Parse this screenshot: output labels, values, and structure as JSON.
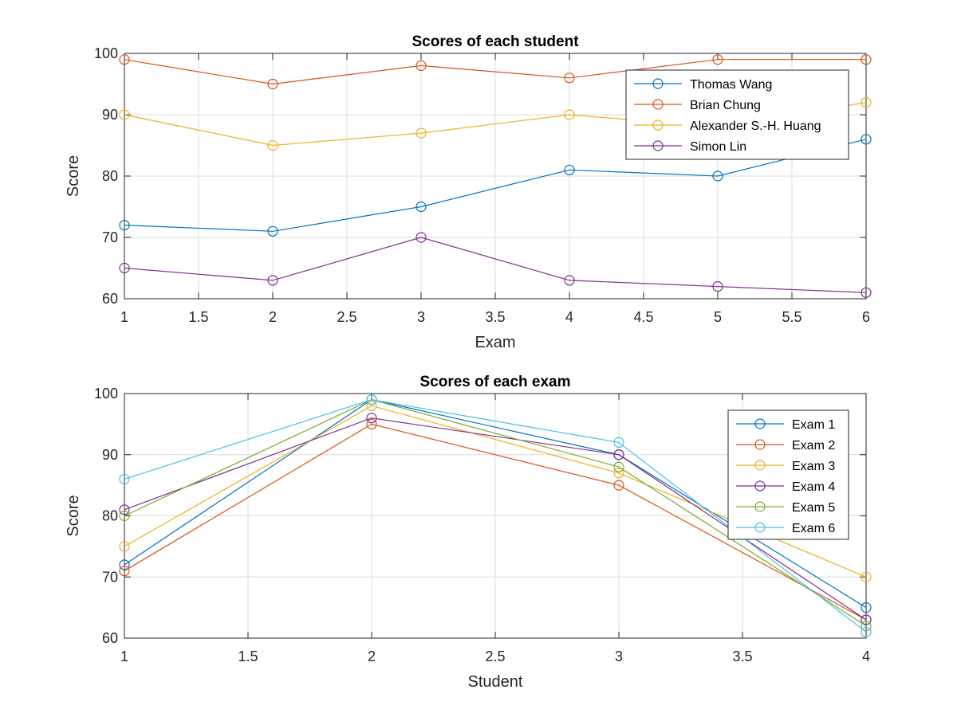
{
  "chart_data": [
    {
      "type": "line",
      "title": "Scores of each student",
      "xlabel": "Exam",
      "ylabel": "Score",
      "xlim": [
        1,
        6
      ],
      "ylim": [
        60,
        100
      ],
      "xticks": [
        "1",
        "1.5",
        "2",
        "2.5",
        "3",
        "3.5",
        "4",
        "4.5",
        "5",
        "5.5",
        "6"
      ],
      "yticks": [
        "60",
        "70",
        "80",
        "90",
        "100"
      ],
      "grid": true,
      "legend_position": "top-right",
      "x": [
        1,
        2,
        3,
        4,
        5,
        6
      ],
      "series": [
        {
          "name": "Thomas Wang",
          "color": "#0072BD",
          "values": [
            72,
            71,
            75,
            81,
            80,
            86
          ]
        },
        {
          "name": "Brian Chung",
          "color": "#D95319",
          "values": [
            99,
            95,
            98,
            96,
            99,
            99
          ]
        },
        {
          "name": "Alexander S.-H. Huang",
          "color": "#EDB120",
          "values": [
            90,
            85,
            87,
            90,
            88,
            92
          ]
        },
        {
          "name": "Simon Lin",
          "color": "#7E2F8E",
          "values": [
            65,
            63,
            70,
            63,
            62,
            61
          ]
        }
      ],
      "marker": "circle"
    },
    {
      "type": "line",
      "title": "Scores of each exam",
      "xlabel": "Student",
      "ylabel": "Score",
      "xlim": [
        1,
        4
      ],
      "ylim": [
        60,
        100
      ],
      "xticks": [
        "1",
        "1.5",
        "2",
        "2.5",
        "3",
        "3.5",
        "4"
      ],
      "yticks": [
        "60",
        "70",
        "80",
        "90",
        "100"
      ],
      "grid": true,
      "legend_position": "top-right",
      "x": [
        1,
        2,
        3,
        4
      ],
      "series": [
        {
          "name": "Exam 1",
          "color": "#0072BD",
          "values": [
            72,
            99,
            90,
            65
          ]
        },
        {
          "name": "Exam 2",
          "color": "#D95319",
          "values": [
            71,
            95,
            85,
            63
          ]
        },
        {
          "name": "Exam 3",
          "color": "#EDB120",
          "values": [
            75,
            98,
            87,
            70
          ]
        },
        {
          "name": "Exam 4",
          "color": "#7E2F8E",
          "values": [
            81,
            96,
            90,
            63
          ]
        },
        {
          "name": "Exam 5",
          "color": "#77AC30",
          "values": [
            80,
            99,
            88,
            62
          ]
        },
        {
          "name": "Exam 6",
          "color": "#4DBEEE",
          "values": [
            86,
            99,
            92,
            61
          ]
        }
      ],
      "marker": "circle"
    }
  ]
}
